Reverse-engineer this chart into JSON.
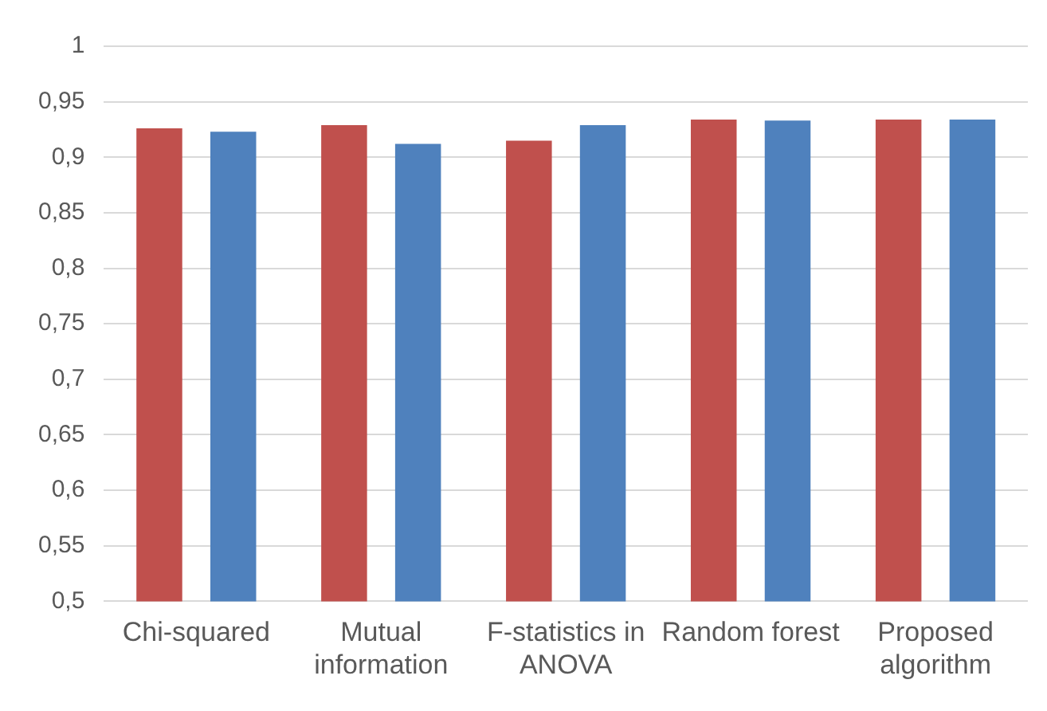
{
  "chart_data": {
    "type": "bar",
    "categories": [
      "Chi-squared",
      "Mutual information",
      "F-statistics in ANOVA",
      "Random forest",
      "Proposed algorithm"
    ],
    "series": [
      {
        "color": "#c0504d",
        "values": [
          0.926,
          0.929,
          0.915,
          0.934,
          0.934
        ]
      },
      {
        "color": "#4f81bd",
        "values": [
          0.923,
          0.912,
          0.929,
          0.933,
          0.934
        ]
      }
    ],
    "ylim": [
      0.5,
      1
    ],
    "yticks": [
      {
        "value": 0.5,
        "label": "0,5"
      },
      {
        "value": 0.55,
        "label": "0,55"
      },
      {
        "value": 0.6,
        "label": "0,6"
      },
      {
        "value": 0.65,
        "label": "0,65"
      },
      {
        "value": 0.7,
        "label": "0,7"
      },
      {
        "value": 0.75,
        "label": "0,75"
      },
      {
        "value": 0.8,
        "label": "0,8"
      },
      {
        "value": 0.85,
        "label": "0,85"
      },
      {
        "value": 0.9,
        "label": "0,9"
      },
      {
        "value": 0.95,
        "label": "0,95"
      },
      {
        "value": 1,
        "label": "1"
      }
    ],
    "grid": "y",
    "legend": false
  }
}
